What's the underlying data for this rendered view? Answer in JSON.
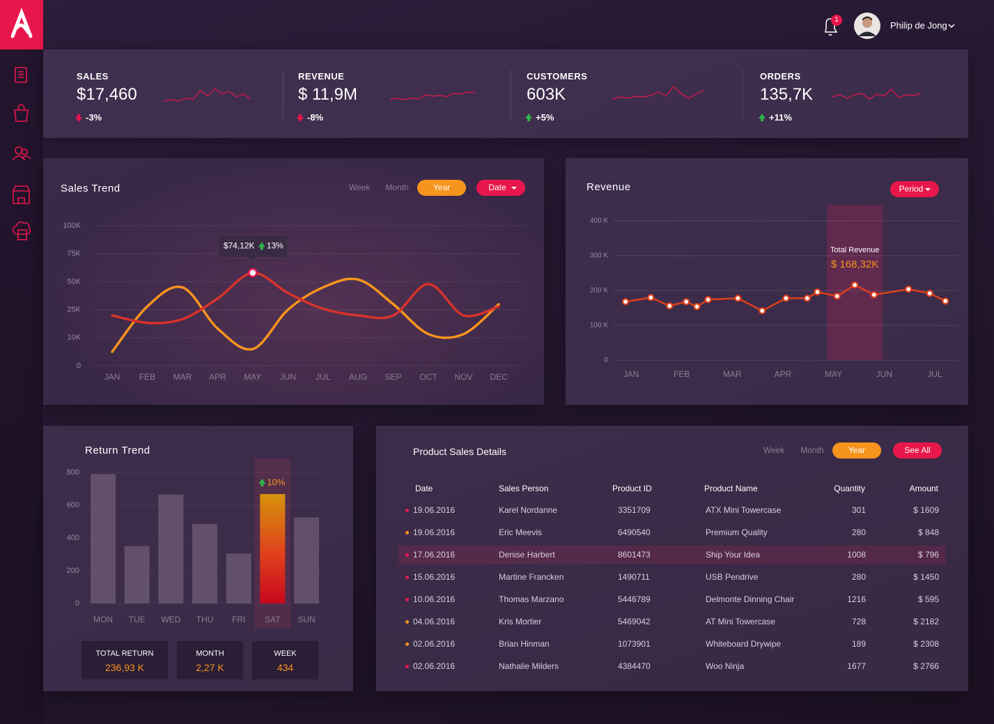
{
  "header": {
    "notifications": "1",
    "user": "Philip de Jong"
  },
  "kpis": [
    {
      "label": "SALES",
      "value": "$17,460",
      "change": "-3%",
      "direction": "down",
      "trend": [
        3,
        3.5,
        3,
        3.8,
        3.5,
        6,
        4.5,
        6.5,
        5,
        5.8,
        4.2,
        5,
        3.6
      ]
    },
    {
      "label": "REVENUE",
      "value": "$ 11,9M",
      "change": "-8%",
      "direction": "down",
      "trend": [
        3.5,
        3.8,
        3.4,
        3.9,
        3.6,
        4.8,
        4.4,
        4.6,
        4.3,
        5.2,
        5,
        5.6,
        5.4
      ]
    },
    {
      "label": "CUSTOMERS",
      "value": "603K",
      "change": "+5%",
      "direction": "up",
      "trend": [
        3.6,
        4.2,
        3.8,
        4.4,
        4.2,
        4.6,
        5.6,
        4.4,
        7.2,
        5.2,
        3.8,
        5,
        6
      ]
    },
    {
      "label": "ORDERS",
      "value": "135,7K",
      "change": "+11%",
      "direction": "up",
      "trend": [
        4.2,
        4.8,
        3.8,
        4.8,
        5.2,
        3.6,
        5,
        4.4,
        6.4,
        4,
        4.8,
        4.6,
        5.2
      ]
    }
  ],
  "sparkline_ylim": [
    0,
    10
  ],
  "chart_data": [
    {
      "type": "line",
      "title": "Sales Trend",
      "filters": [
        "Week",
        "Month",
        "Year"
      ],
      "active_filter": 2,
      "action": "Date",
      "categories": [
        "JAN",
        "FEB",
        "MAR",
        "APR",
        "MAY",
        "JUN",
        "JUL",
        "AUG",
        "SEP",
        "OCT",
        "NOV",
        "DEC"
      ],
      "series": [
        {
          "color": "#f7941d",
          "values": [
            5000,
            28000,
            45000,
            15000,
            6000,
            25000,
            45000,
            52000,
            30000,
            12000,
            12000,
            30000
          ]
        },
        {
          "color": "#d8332b",
          "values": [
            22000,
            18000,
            20000,
            35000,
            58000,
            40000,
            26000,
            22000,
            22000,
            48000,
            22000,
            28000
          ]
        }
      ],
      "ylim": [
        0,
        100000
      ],
      "yticks": [
        0,
        {
          "value": 10000,
          "label": "10K"
        },
        {
          "value": 25000,
          "label": "25K"
        },
        {
          "value": 50000,
          "label": "50K"
        },
        {
          "value": 75000,
          "label": "75K"
        },
        {
          "value": 100000,
          "label": "100K"
        }
      ],
      "grid": true,
      "annotation": {
        "category": "MAY",
        "text": "$74,12K",
        "change": "13%"
      }
    },
    {
      "type": "scatterline",
      "title": "Revenue",
      "action": "Period",
      "color": "#e0401c",
      "x": [
        -0.11,
        0.39,
        0.76,
        1.09,
        1.3,
        1.52,
        2.11,
        2.59,
        3.06,
        3.48,
        3.68,
        4.07,
        4.42,
        4.8,
        5.48,
        5.9,
        6.21
      ],
      "values": [
        168000,
        180000,
        156000,
        168000,
        154000,
        174000,
        178000,
        142000,
        178000,
        178000,
        196000,
        184000,
        216000,
        188000,
        204000,
        192000,
        170000
      ],
      "xlim": [
        -0.3,
        6.4
      ],
      "xticks": [
        {
          "value": 0,
          "label": "JAN"
        },
        {
          "value": 1,
          "label": "FEB"
        },
        {
          "value": 2,
          "label": "MAR"
        },
        {
          "value": 3,
          "label": "APR"
        },
        {
          "value": 4,
          "label": "MAY"
        },
        {
          "value": 5,
          "label": "JUN"
        },
        {
          "value": 6,
          "label": "JUL"
        }
      ],
      "ylim": [
        0,
        400000
      ],
      "yticks": [
        0,
        {
          "value": 100000,
          "label": "100 K"
        },
        {
          "value": 200000,
          "label": "200 K"
        },
        {
          "value": 300000,
          "label": "300 K"
        },
        {
          "value": 400000,
          "label": "400 K"
        }
      ],
      "grid": true,
      "highlight_x": [
        3.87,
        4.97
      ],
      "annotation": {
        "title": "Total Revenue",
        "text": "$ 168,32K"
      }
    },
    {
      "type": "bar",
      "title": "Return Trend",
      "categories": [
        "MON",
        "TUE",
        "WED",
        "THU",
        "FRI",
        "SAT",
        "SUN"
      ],
      "values": [
        790,
        350,
        665,
        485,
        305,
        668,
        525
      ],
      "color": "#6a5670",
      "highlight_index": 5,
      "highlight_label": "10%",
      "ylim": [
        0,
        800
      ],
      "yticks": [
        0,
        200,
        400,
        600,
        800
      ],
      "grid": true,
      "stats": [
        {
          "label": "TOTAL RETURN",
          "value": "236,93 K"
        },
        {
          "label": "MONTH",
          "value": "2,27 K"
        },
        {
          "label": "WEEK",
          "value": "434"
        }
      ]
    }
  ],
  "table": {
    "title": "Product Sales Details",
    "filters": [
      "Week",
      "Month",
      "Year"
    ],
    "active_filter": 2,
    "action": "See All",
    "columns": [
      "Date",
      "Sales Person",
      "Product ID",
      "Product Name",
      "Quantity",
      "Amount"
    ],
    "rows": [
      [
        "19.06.2016",
        "Karel Nordanne",
        "3351709",
        "ATX Mini Towercase",
        "301",
        "$ 1609"
      ],
      [
        "19.06.2016",
        "Eric Meevis",
        "6490540",
        "Premium Quality",
        "280",
        "$ 848"
      ],
      [
        "17.06.2016",
        "Denise Harbert",
        "8601473",
        "Ship Your Idea",
        "1008",
        "$ 796"
      ],
      [
        "15.06.2016",
        "Martine Francken",
        "1490711",
        "USB Pendrive",
        "280",
        "$ 1450"
      ],
      [
        "10.06.2016",
        "Thomas Marzano",
        "5446789",
        "Delmonte Dinning Chair",
        "1216",
        "$ 595"
      ],
      [
        "04.06.2016",
        "Kris Mortier",
        "5469042",
        "AT Mini Towercase",
        "728",
        "$ 2182"
      ],
      [
        "02.06.2016",
        "Brian Hinman",
        "1073901",
        "Whiteboard Drywipe",
        "189",
        "$ 2308"
      ],
      [
        "02.06.2016",
        "Nathalie Milders",
        "4384470",
        "Woo Ninja",
        "1677",
        "$ 2766"
      ]
    ],
    "row_status": [
      "#e8174b",
      "#f7941d",
      "#e8174b",
      "#e8174b",
      "#e8174b",
      "#f7941d",
      "#f7941d",
      "#e8174b"
    ],
    "highlight_row": 2
  }
}
